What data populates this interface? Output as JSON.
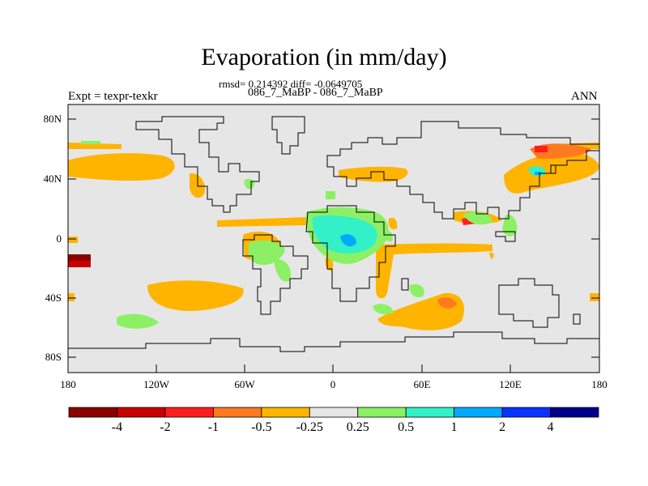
{
  "title": "Evaporation (in mm/day)",
  "subtitle_stats": "rmsd= 0.214392 diff= -0.0649705",
  "subtitle_experiments": "086_7_MaBP - 086_7_MaBP",
  "expt_label": "Expt = texpr-texkr",
  "season": "ANN",
  "lat_ticks": [
    "80N",
    "40N",
    "0",
    "40S",
    "80S"
  ],
  "lon_ticks": [
    "180",
    "120W",
    "60W",
    "0",
    "60E",
    "120E",
    "180"
  ],
  "colorbar": {
    "colors": [
      "#8b0000",
      "#c80000",
      "#ff1e1e",
      "#ff7a1e",
      "#ffb400",
      "#e6e6e6",
      "#8cf064",
      "#32f0c8",
      "#00aaff",
      "#0a32ff",
      "#00008c"
    ],
    "labels": [
      "-4",
      "-2",
      "-1",
      "-0.5",
      "-0.25",
      "0.25",
      "0.5",
      "1",
      "2",
      "4"
    ]
  },
  "map_background": "#e6e6e6"
}
